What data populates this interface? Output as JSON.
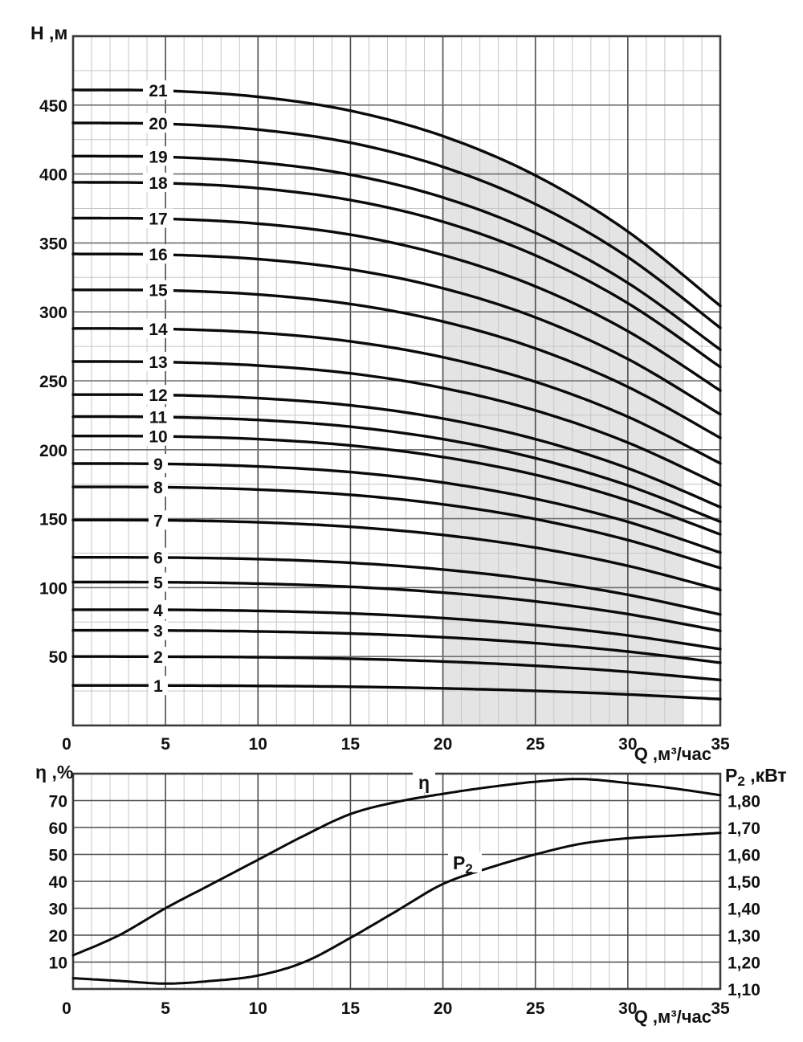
{
  "colors": {
    "curve": "#0a0a0a",
    "grid_minor": "#c6c6c6",
    "grid_major": "#4d4d4d",
    "grid_major_h_top": "#6f6f6f",
    "border": "#3b3b3b",
    "shading": "#e4e4e4",
    "text": "#111111"
  },
  "chart_data": [
    {
      "type": "line",
      "name": "head-curves",
      "y_axis_title": "Н ,м",
      "x_axis_title": "Q ,м³/час",
      "x_range": [
        0,
        35
      ],
      "y_range": [
        0,
        500
      ],
      "x_ticks": [
        0,
        5,
        10,
        15,
        20,
        25,
        30,
        35
      ],
      "y_ticks": [
        50,
        100,
        150,
        200,
        250,
        300,
        350,
        400,
        450
      ],
      "x_minor_step": 1,
      "y_minor_step": 25,
      "grid": "on",
      "shaded_region": {
        "q_from": 20,
        "q_to": 33
      },
      "q_points": [
        0,
        5,
        10,
        15,
        20,
        25,
        30,
        35
      ],
      "curves": [
        {
          "label": "1",
          "H": [
            29,
            29,
            28.7,
            28.1,
            26.9,
            25.1,
            22.5,
            19.1
          ]
        },
        {
          "label": "2",
          "H": [
            50,
            49.9,
            49.5,
            48.4,
            46.4,
            43.3,
            38.9,
            33
          ]
        },
        {
          "label": "3",
          "H": [
            69,
            68.9,
            68.2,
            66.7,
            64,
            59.7,
            53.6,
            45.5
          ]
        },
        {
          "label": "4",
          "H": [
            84,
            83.9,
            83.1,
            81.3,
            77.9,
            72.7,
            65.3,
            55.4
          ]
        },
        {
          "label": "5",
          "H": [
            104,
            103.9,
            102.9,
            100.6,
            96.4,
            90,
            80.8,
            68.6
          ]
        },
        {
          "label": "6",
          "H": [
            122,
            121.8,
            120.7,
            118,
            113.1,
            105.6,
            94.8,
            80.5
          ]
        },
        {
          "label": "7",
          "H": [
            149,
            148.8,
            147.4,
            144.1,
            138.2,
            129,
            115.8,
            98.3
          ]
        },
        {
          "label": "8",
          "H": [
            173,
            172.8,
            171.1,
            167.3,
            160.4,
            149.7,
            134.5,
            114.2
          ]
        },
        {
          "label": "9",
          "H": [
            190,
            189.7,
            187.9,
            183.8,
            176.2,
            164.4,
            147.7,
            125.4
          ]
        },
        {
          "label": "10",
          "H": [
            210,
            209.7,
            207.7,
            203.1,
            194.7,
            181.8,
            163.2,
            138.6
          ]
        },
        {
          "label": "11",
          "H": [
            224,
            223.7,
            221.6,
            216.7,
            207.7,
            193.9,
            174.1,
            147.8
          ]
        },
        {
          "label": "12",
          "H": [
            240,
            239.7,
            237.4,
            232.2,
            222.6,
            207.7,
            186.6,
            158.4
          ]
        },
        {
          "label": "13",
          "H": [
            264,
            263.6,
            261.1,
            255.4,
            244.8,
            228.5,
            205.2,
            174.2
          ]
        },
        {
          "label": "14",
          "H": [
            288,
            287.6,
            284.9,
            278.6,
            267.1,
            249.3,
            223.9,
            190.1
          ]
        },
        {
          "label": "15",
          "H": [
            316,
            315.6,
            312.6,
            305.7,
            293,
            273.5,
            245.6,
            208.6
          ]
        },
        {
          "label": "16",
          "H": [
            342,
            341.5,
            338.3,
            330.8,
            317.1,
            296,
            265.8,
            225.7
          ]
        },
        {
          "label": "17",
          "H": [
            368,
            367.5,
            364,
            356,
            341.2,
            318.5,
            286,
            242.9
          ]
        },
        {
          "label": "18",
          "H": [
            394,
            393.4,
            389.7,
            381.1,
            365.4,
            341,
            306.3,
            260
          ]
        },
        {
          "label": "19",
          "H": [
            413,
            412.4,
            408.5,
            399.5,
            383,
            357.4,
            321,
            272.6
          ]
        },
        {
          "label": "20",
          "H": [
            437,
            436.4,
            432.2,
            422.7,
            405.2,
            378.2,
            339.7,
            288.4
          ]
        },
        {
          "label": "21",
          "H": [
            461,
            460.4,
            456,
            445.9,
            427.5,
            399,
            358.3,
            304.3
          ]
        }
      ]
    },
    {
      "type": "line",
      "name": "efficiency-and-power",
      "left_axis_title": "η ,%",
      "right_axis_title": {
        "main": "P",
        "sub": "2",
        "rest": " ,кВт"
      },
      "x_axis_title": "Q ,м³/час",
      "x_range": [
        0,
        35
      ],
      "x_ticks": [
        0,
        5,
        10,
        15,
        20,
        25,
        30,
        35
      ],
      "x_minor_step": 1,
      "left_range": [
        0,
        80
      ],
      "left_ticks": [
        10,
        20,
        30,
        40,
        50,
        60,
        70
      ],
      "right_range": [
        1.1,
        1.9
      ],
      "right_ticks": [
        "1,10",
        "1,20",
        "1,30",
        "1,40",
        "1,50",
        "1,60",
        "1,70",
        "1,80"
      ],
      "grid": "on",
      "eta_curve": {
        "label": "η",
        "points": [
          [
            0,
            12.5
          ],
          [
            2.5,
            20
          ],
          [
            5,
            30
          ],
          [
            7.5,
            39
          ],
          [
            10,
            48
          ],
          [
            12.5,
            57
          ],
          [
            15,
            65
          ],
          [
            17.5,
            69.5
          ],
          [
            20,
            72.5
          ],
          [
            22.5,
            75
          ],
          [
            25,
            77
          ],
          [
            27.5,
            78
          ],
          [
            30,
            76.5
          ],
          [
            32.5,
            74.5
          ],
          [
            35,
            72
          ]
        ]
      },
      "p2_curve": {
        "label": {
          "main": "P",
          "sub": "2"
        },
        "points": [
          [
            0,
            1.14
          ],
          [
            2.5,
            1.13
          ],
          [
            5,
            1.12
          ],
          [
            7.5,
            1.13
          ],
          [
            10,
            1.15
          ],
          [
            12.5,
            1.2
          ],
          [
            15,
            1.29
          ],
          [
            17.5,
            1.39
          ],
          [
            20,
            1.49
          ],
          [
            22.5,
            1.55
          ],
          [
            25,
            1.6
          ],
          [
            27.5,
            1.64
          ],
          [
            30,
            1.66
          ],
          [
            32.5,
            1.67
          ],
          [
            35,
            1.68
          ]
        ]
      }
    }
  ]
}
